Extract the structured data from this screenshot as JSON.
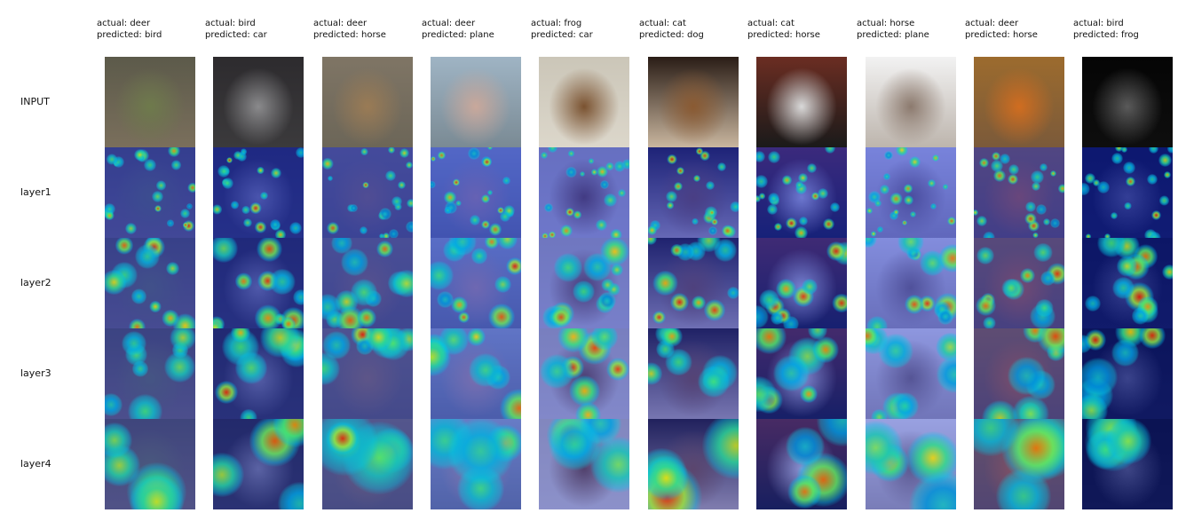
{
  "columns": [
    {
      "actual": "actual: deer",
      "predicted": "predicted: bird"
    },
    {
      "actual": "actual: bird",
      "predicted": "predicted: car"
    },
    {
      "actual": "actual: deer",
      "predicted": "predicted: horse"
    },
    {
      "actual": "actual: deer",
      "predicted": "predicted: plane"
    },
    {
      "actual": "actual: frog",
      "predicted": "predicted: car"
    },
    {
      "actual": "actual: cat",
      "predicted": "predicted: dog"
    },
    {
      "actual": "actual: cat",
      "predicted": "predicted: horse"
    },
    {
      "actual": "actual: horse",
      "predicted": "predicted: plane"
    },
    {
      "actual": "actual: deer",
      "predicted": "predicted: horse"
    },
    {
      "actual": "actual: bird",
      "predicted": "predicted: frog"
    }
  ],
  "rows": [
    "INPUT",
    "layer1",
    "layer2",
    "layer3",
    "layer4"
  ],
  "colors": {
    "background": "#ffffff",
    "heat_low": "#1a237e",
    "heat_mid": "#26c6da",
    "heat_high": "#ff1e00"
  }
}
